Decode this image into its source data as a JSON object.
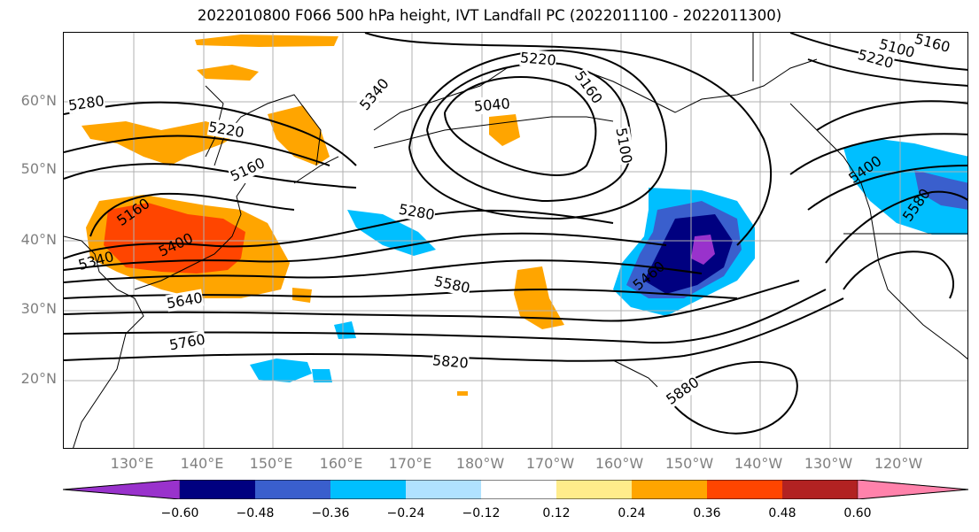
{
  "title": "2022010800 F066 500 hPa height, IVT Landfall PC (2022011100 - 2022011300)",
  "lat_labels": [
    "60°N",
    "50°N",
    "40°N",
    "30°N",
    "20°N"
  ],
  "lon_labels": [
    "130°E",
    "140°E",
    "150°E",
    "160°E",
    "170°E",
    "180°W",
    "170°W",
    "160°W",
    "150°W",
    "140°W",
    "130°W",
    "120°W"
  ],
  "contour_labels": [
    "5280",
    "5220",
    "5160",
    "5160",
    "5340",
    "5400",
    "5640",
    "5760",
    "5280",
    "5580",
    "5820",
    "5040",
    "5160",
    "5100",
    "5220",
    "5460",
    "5880",
    "5160",
    "5100",
    "5220",
    "5400",
    "5580",
    "5340"
  ],
  "colorbar": {
    "ticks": [
      "−0.60",
      "−0.48",
      "−0.36",
      "−0.24",
      "−0.12",
      "0.12",
      "0.24",
      "0.36",
      "0.48",
      "0.60"
    ],
    "colors": [
      "#9932cc",
      "#000080",
      "#3a5fcd",
      "#00bfff",
      "#b0e2ff",
      "#ffffff",
      "#ffec8b",
      "#ffa500",
      "#ff4500",
      "#b22222",
      "#ff82ab"
    ]
  },
  "colors": {
    "gridline": "#b0b0b0",
    "contour": "#000000",
    "axis_label": "#808080"
  }
}
